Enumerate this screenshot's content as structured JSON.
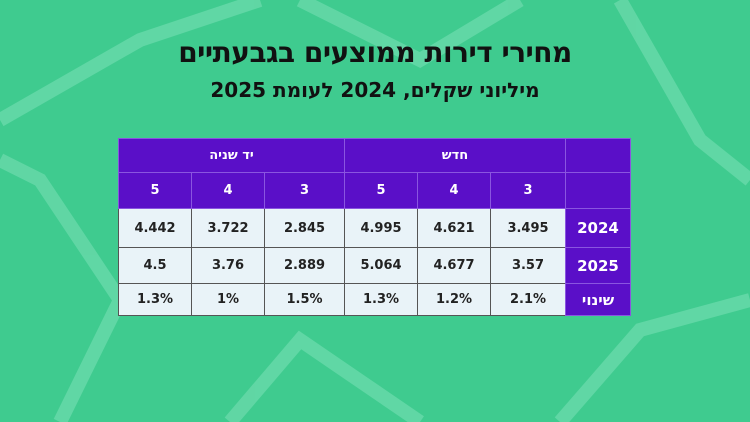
{
  "chart_data": {
    "type": "table",
    "title": "מחירי דירות ממוצעים בגבעתיים",
    "subtitle": "מיליוני שקלים, 2024 לעומת 2025",
    "groups": [
      "חדש",
      "יד שניה"
    ],
    "rooms": [
      "3",
      "4",
      "5",
      "3",
      "4",
      "5"
    ],
    "rows": [
      {
        "label": "2024",
        "values": [
          "3.495",
          "4.621",
          "4.995",
          "2.845",
          "3.722",
          "4.442"
        ]
      },
      {
        "label": "2025",
        "values": [
          "3.57",
          "4.677",
          "5.064",
          "2.889",
          "3.76",
          "4.5"
        ]
      },
      {
        "label": "שינוי",
        "values": [
          "2.1%",
          "1.2%",
          "1.3%",
          "1.5%",
          "1%",
          "1.3%"
        ]
      }
    ]
  },
  "colors": {
    "header": "#5a0fc8",
    "cell": "#e9f3f8",
    "background": "#3fcb8f"
  }
}
